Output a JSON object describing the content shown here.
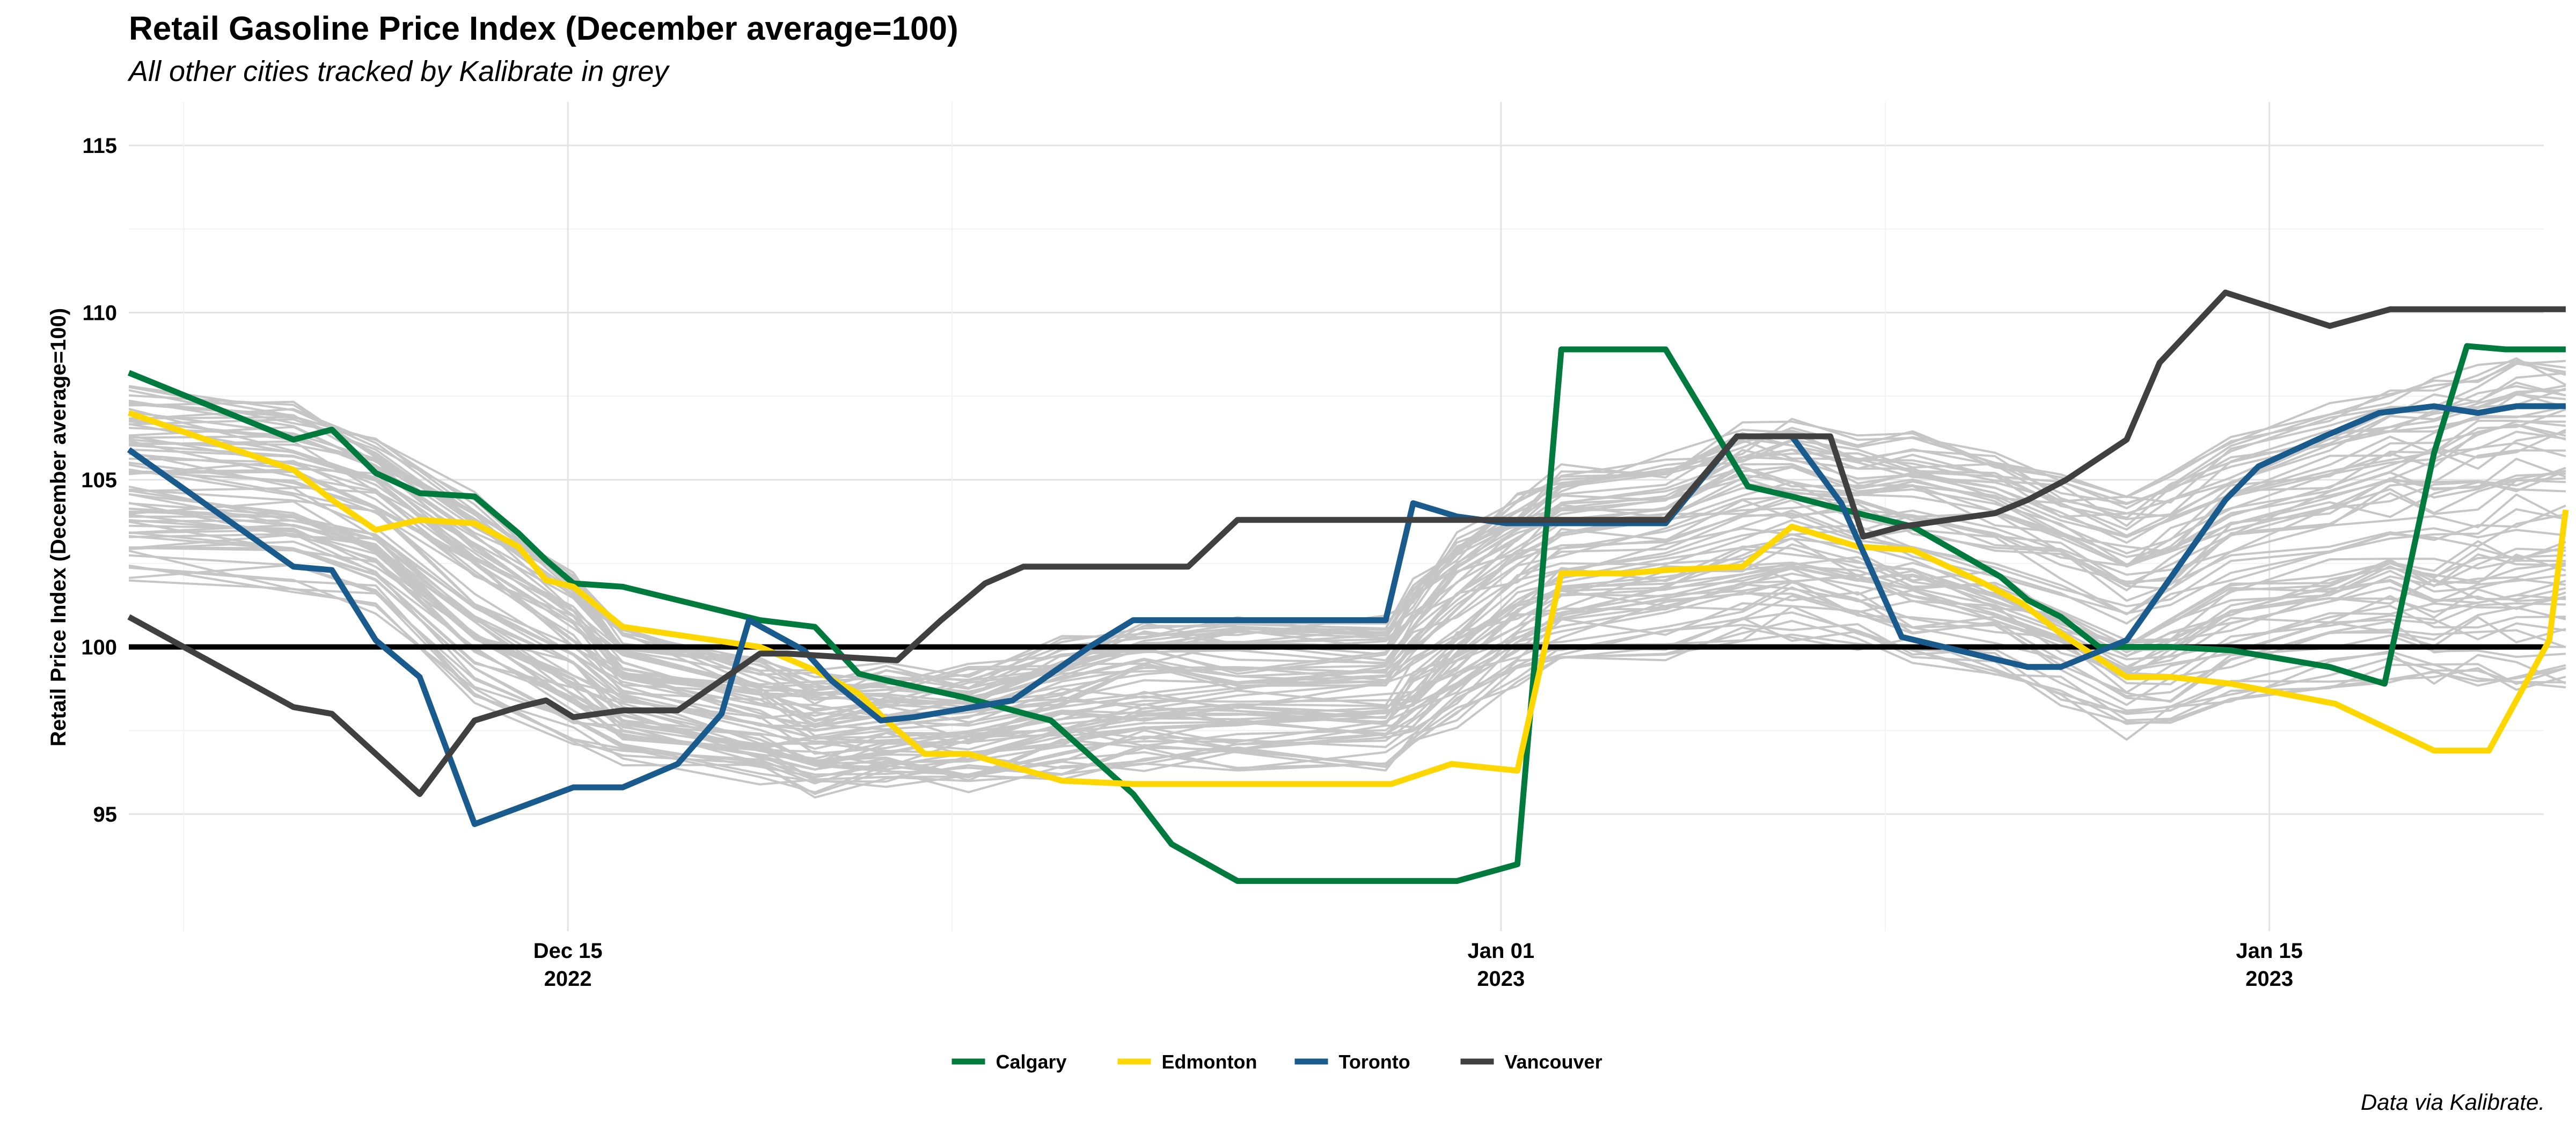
{
  "chart_data": {
    "type": "line",
    "title": "Retail Gasoline Price Index (December average=100)",
    "subtitle": "All other cities tracked by Kalibrate in grey",
    "ylabel": "Retail Price Index (December average=100)",
    "xlabel": "",
    "caption": "Data via Kalibrate.",
    "x_unit": "days since Dec 01 2022",
    "xlim": [
      6,
      50
    ],
    "ylim": [
      91.5,
      116.3
    ],
    "reference_line": 100,
    "y_ticks": [
      95,
      100,
      105,
      110,
      115
    ],
    "x_ticks": [
      {
        "x": 14,
        "label": "Dec 15",
        "sublabel": "2022"
      },
      {
        "x": 31,
        "label": "Jan 01",
        "sublabel": "2023"
      },
      {
        "x": 45,
        "label": "Jan 15",
        "sublabel": "2023"
      }
    ],
    "legend_position": "bottom",
    "series": [
      {
        "name": "Calgary",
        "color": "#007A3D",
        "x": [
          6,
          9,
          9.7,
          10.5,
          11.3,
          12.3,
          13.1,
          13.6,
          14.1,
          15,
          17.5,
          18.5,
          19.3,
          19.8,
          21.2,
          22.8,
          24.3,
          25,
          26.2,
          29,
          30.2,
          31.3,
          32.1,
          33.3,
          34,
          35.5,
          36.3,
          37.5,
          38.5,
          40.1,
          40.6,
          41.2,
          41.9,
          42.4,
          43.2,
          44.3,
          46.1,
          47.1,
          48,
          48.6,
          49.3,
          50.4
        ],
        "y": [
          108.2,
          106.2,
          106.5,
          105.2,
          104.6,
          104.5,
          103.4,
          102.6,
          101.9,
          101.8,
          100.8,
          100.6,
          99.2,
          99,
          98.5,
          97.8,
          95.6,
          94.1,
          93,
          93,
          93,
          93.5,
          108.9,
          108.9,
          108.9,
          104.8,
          104.5,
          104,
          103.6,
          102.1,
          101.4,
          100.9,
          100,
          100,
          100,
          99.9,
          99.4,
          98.9,
          105.8,
          109,
          108.9,
          108.9
        ]
      },
      {
        "name": "Edmonton",
        "color": "#FFD700",
        "x": [
          6,
          9,
          9.7,
          10.5,
          11.3,
          12.3,
          13.1,
          13.6,
          14.1,
          15,
          17.5,
          18.5,
          19.3,
          19.8,
          20.5,
          21.3,
          23,
          24.3,
          25,
          26.3,
          27.2,
          28.2,
          29,
          30.1,
          31.3,
          32.1,
          33.3,
          34,
          35.4,
          36.3,
          37.5,
          38.5,
          39.8,
          40.5,
          41.2,
          42.4,
          43.2,
          44.3,
          46.2,
          47.1,
          48,
          49,
          50.1,
          50.4
        ],
        "y": [
          107,
          105.3,
          104.4,
          103.5,
          103.8,
          103.7,
          103,
          102,
          101.8,
          100.6,
          100,
          99.3,
          98.6,
          97.8,
          96.8,
          96.8,
          96,
          95.9,
          95.9,
          95.9,
          95.9,
          95.9,
          95.9,
          96.5,
          96.3,
          102.2,
          102.2,
          102.3,
          102.4,
          103.6,
          103,
          102.9,
          101.9,
          101.3,
          100.4,
          99.1,
          99.1,
          98.9,
          98.3,
          97.6,
          96.9,
          96.9,
          100.2,
          104.1
        ]
      },
      {
        "name": "Toronto",
        "color": "#1A5B8E",
        "x": [
          6,
          9,
          9.7,
          10.5,
          11.3,
          12.3,
          14.1,
          15,
          16,
          16.8,
          17.3,
          18.3,
          18.8,
          19.7,
          20.3,
          22.1,
          22.8,
          23.5,
          24.3,
          25,
          26.2,
          28.9,
          29.4,
          30.2,
          31.1,
          32,
          33.2,
          34,
          35.3,
          35.5,
          36.3,
          37.2,
          38.3,
          40.6,
          41.2,
          42.4,
          43,
          44.2,
          44.8,
          46,
          47,
          48,
          48.8,
          49.5,
          50.4
        ],
        "y": [
          105.9,
          102.4,
          102.3,
          100.2,
          99.1,
          94.7,
          95.8,
          95.8,
          96.5,
          98,
          100.8,
          99.9,
          99,
          97.8,
          97.9,
          98.4,
          99.2,
          100,
          100.8,
          100.8,
          100.8,
          100.8,
          104.3,
          103.9,
          103.7,
          103.7,
          103.7,
          103.7,
          106.3,
          106.3,
          106.3,
          104.3,
          100.3,
          99.4,
          99.4,
          100.2,
          101.6,
          104.4,
          105.4,
          106.3,
          107,
          107.2,
          107,
          107.2,
          107.2
        ]
      },
      {
        "name": "Vancouver",
        "color": "#404040",
        "x": [
          6,
          9,
          9.7,
          10.5,
          11.3,
          12.3,
          13.1,
          13.6,
          14.1,
          15,
          16,
          17.5,
          18,
          19,
          20,
          20.8,
          21.6,
          22.3,
          23,
          23.8,
          24.5,
          25.3,
          26.2,
          26.8,
          27.5,
          28.9,
          29.4,
          30.2,
          31.1,
          32,
          33.2,
          34,
          35.3,
          35.5,
          36.3,
          37,
          37.6,
          38.3,
          40,
          40.6,
          41.3,
          42.4,
          43,
          44.2,
          46.1,
          47.2,
          48,
          48.8,
          49.8,
          50.4
        ],
        "y": [
          100.9,
          98.2,
          98,
          96.8,
          95.6,
          97.8,
          98.2,
          98.4,
          97.9,
          98.1,
          98.1,
          99.8,
          99.8,
          99.7,
          99.6,
          100.8,
          101.9,
          102.4,
          102.4,
          102.4,
          102.4,
          102.4,
          103.8,
          103.8,
          103.8,
          103.8,
          103.8,
          103.8,
          103.8,
          103.8,
          103.8,
          103.8,
          106.3,
          106.3,
          106.3,
          106.3,
          103.3,
          103.6,
          104,
          104.4,
          105,
          106.2,
          108.5,
          110.6,
          109.6,
          110.1,
          110.1,
          110.1,
          110.1,
          110.1
        ]
      }
    ],
    "grey_series_note": "other cities"
  }
}
